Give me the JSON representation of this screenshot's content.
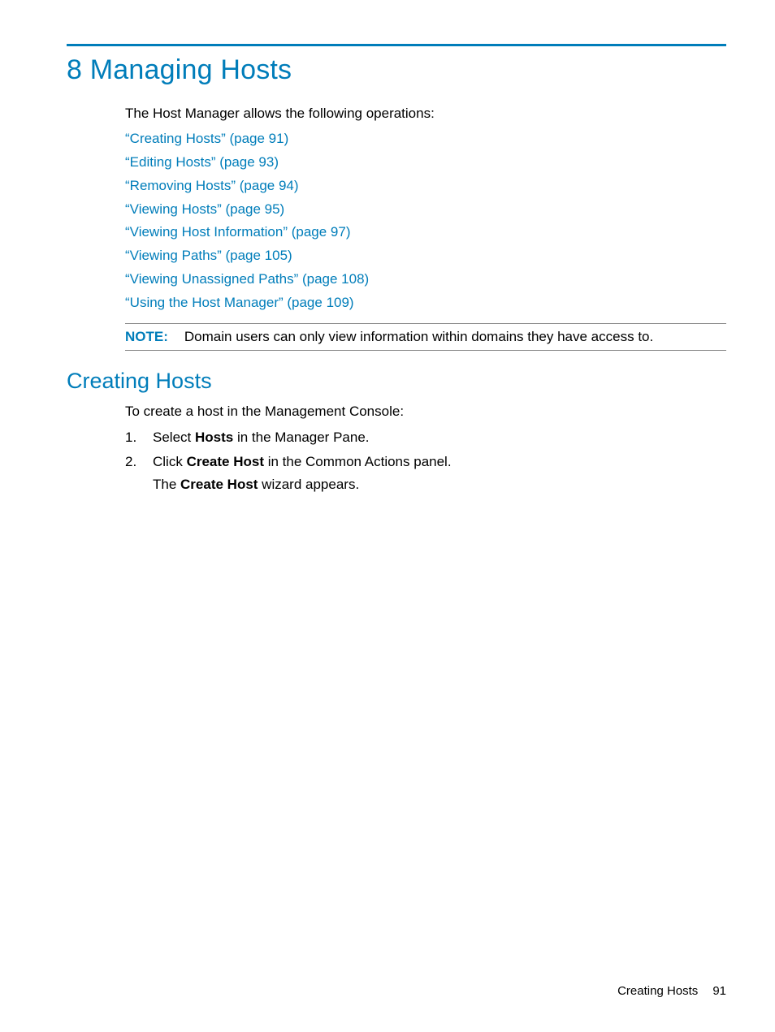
{
  "colors": {
    "accent": "#007dba",
    "text": "#000000",
    "rule": "#888888",
    "background": "#ffffff"
  },
  "chapter": {
    "title": "8 Managing Hosts"
  },
  "intro": "The Host Manager allows the following operations:",
  "links": [
    "“Creating Hosts” (page 91)",
    "“Editing Hosts” (page 93)",
    "“Removing Hosts” (page 94)",
    "“Viewing Hosts” (page 95)",
    "“Viewing Host Information” (page 97)",
    "“Viewing Paths” (page 105)",
    "“Viewing Unassigned Paths” (page 108)",
    "“Using the Host Manager” (page 109)"
  ],
  "note": {
    "label": "NOTE:",
    "text": "Domain users can only view information within domains they have access to."
  },
  "section": {
    "title": "Creating Hosts",
    "intro": "To create a host in the Management Console:",
    "steps": [
      {
        "num": "1.",
        "pre": "Select ",
        "bold": "Hosts",
        "post": " in the Manager Pane."
      },
      {
        "num": "2.",
        "pre": "Click ",
        "bold": "Create Host",
        "post": " in the Common Actions panel."
      }
    ],
    "after": {
      "pre": "The ",
      "bold": "Create Host",
      "post": " wizard appears."
    }
  },
  "footer": {
    "section": "Creating Hosts",
    "page": "91"
  }
}
